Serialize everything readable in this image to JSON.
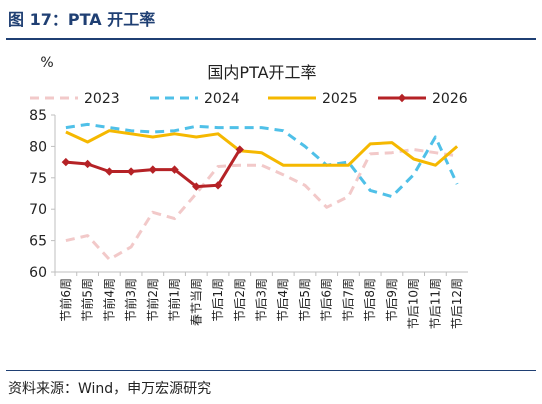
{
  "figure_title": "图 17：PTA 开工率",
  "source": "资料来源：Wind，申万宏源研究",
  "chart_data": {
    "type": "line",
    "title": "国内PTA开工率",
    "ylabel": "%",
    "ylim": [
      60,
      85
    ],
    "yticks": [
      60,
      65,
      70,
      75,
      80,
      85
    ],
    "grid": false,
    "legend_position": "top",
    "categories": [
      "节前6周",
      "节前5周",
      "节前4周",
      "节前3周",
      "节前2周",
      "节前1周",
      "春节当周",
      "节后1周",
      "节后2周",
      "节后3周",
      "节后4周",
      "节后5周",
      "节后6周",
      "节后7周",
      "节后8周",
      "节后9周",
      "节后10周",
      "节后11周",
      "节后12周"
    ],
    "series": [
      {
        "name": "2023",
        "color": "#f2c9c9",
        "dash": "dash",
        "marker": false,
        "values": [
          65.0,
          65.8,
          62.0,
          64.0,
          69.5,
          68.5,
          72.5,
          76.8,
          77.0,
          77.0,
          75.5,
          73.8,
          70.3,
          72.0,
          78.8,
          79.0,
          79.5,
          79.0,
          78.5
        ]
      },
      {
        "name": "2024",
        "color": "#4fc0e8",
        "dash": "dash",
        "marker": false,
        "values": [
          83.0,
          83.5,
          83.0,
          82.5,
          82.3,
          82.5,
          83.2,
          83.0,
          83.0,
          83.0,
          82.5,
          80.0,
          77.0,
          77.5,
          73.0,
          72.0,
          75.5,
          81.5,
          74.0
        ]
      },
      {
        "name": "2025",
        "color": "#f5b800",
        "dash": "solid",
        "marker": false,
        "values": [
          82.3,
          80.7,
          82.5,
          82.0,
          81.5,
          82.0,
          81.5,
          82.0,
          79.3,
          79.0,
          77.0,
          77.0,
          77.0,
          77.0,
          80.4,
          80.6,
          78.0,
          77.0,
          80.0
        ]
      },
      {
        "name": "2026",
        "color": "#b52226",
        "dash": "solid",
        "marker": true,
        "values": [
          77.5,
          77.2,
          76.0,
          76.0,
          76.3,
          76.3,
          73.6,
          73.8,
          79.5,
          null,
          null,
          null,
          null,
          null,
          null,
          null,
          null,
          null,
          null
        ]
      }
    ]
  }
}
